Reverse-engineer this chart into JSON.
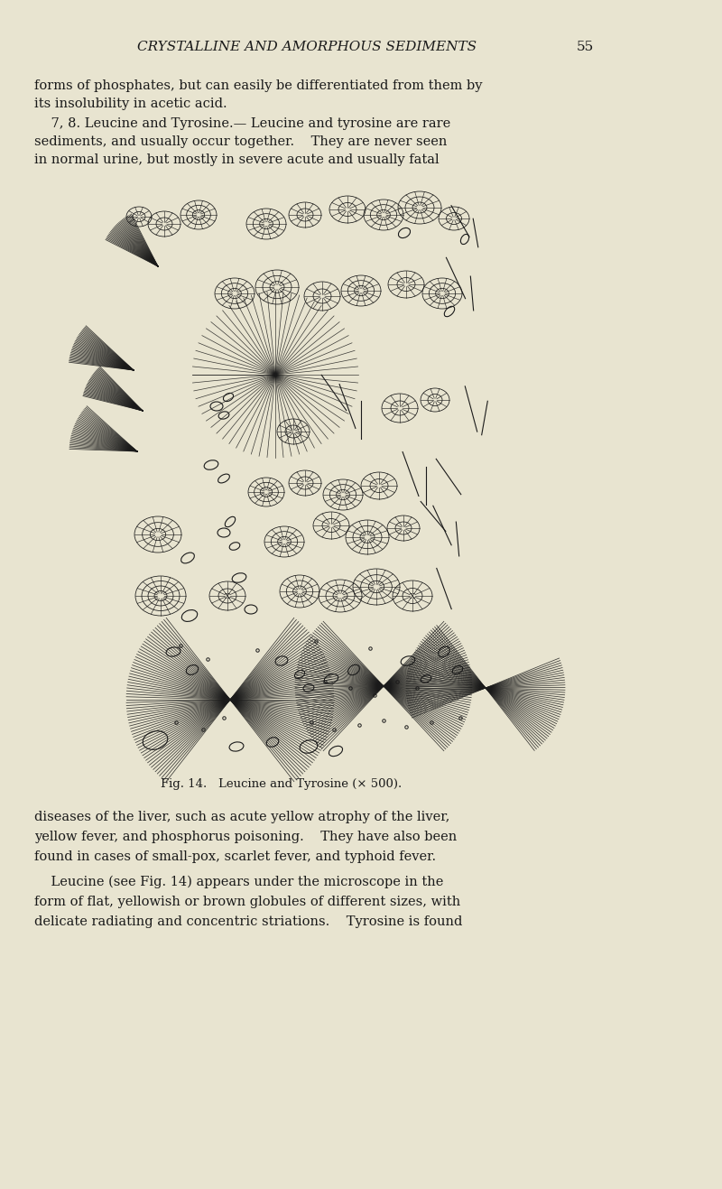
{
  "bg_color": "#e8e4d0",
  "header_text": "CRYSTALLINE AND AMORPHOUS SEDIMENTS",
  "page_number": "55",
  "header_fontsize": 11,
  "body_fontsize": 10.5,
  "caption_text": "Fig. 14.   Leucine and Tyrosine (× 500).",
  "ink_color": "#1a1a1a",
  "p1_lines": [
    "forms of phosphates, but can easily be differentiated from them by",
    "its insolubility in acetic acid."
  ],
  "p2_lines": [
    "    7, 8. Leucine and Tyrosine.— Leucine and tyrosine are rare",
    "sediments, and usually occur together.    They are never seen",
    "in normal urine, but mostly in severe acute and usually fatal"
  ],
  "p3_lines": [
    "diseases of the liver, such as acute yellow atrophy of the liver,",
    "yellow fever, and phosphorus poisoning.    They have also been",
    "found in cases of small-pox, scarlet fever, and typhoid fever."
  ],
  "p4_lines": [
    "    Leucine (see Fig. 14) appears under the microscope in the",
    "form of flat, yellowish or brown globules of different sizes, with",
    "delicate radiating and concentric striations.    Tyrosine is found"
  ]
}
